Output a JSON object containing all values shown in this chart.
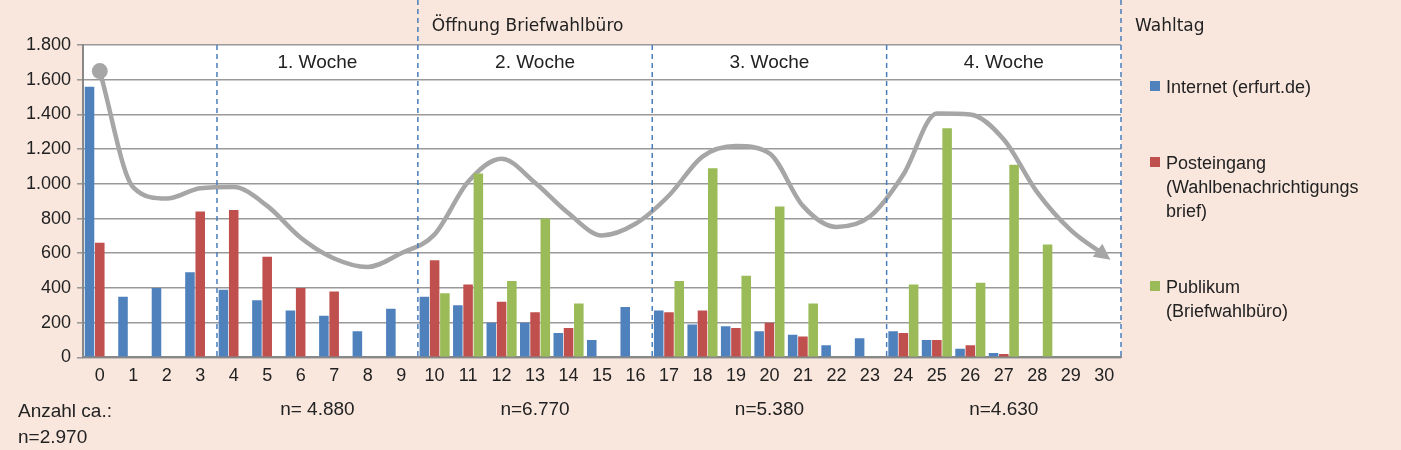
{
  "chart_data": {
    "type": "bar",
    "x": [
      0,
      1,
      2,
      3,
      4,
      5,
      6,
      7,
      8,
      9,
      10,
      11,
      12,
      13,
      14,
      15,
      16,
      17,
      18,
      19,
      20,
      21,
      22,
      23,
      24,
      25,
      26,
      27,
      28,
      29,
      30
    ],
    "xlim": [
      -0.5,
      30.5
    ],
    "xticks": [
      0,
      1,
      2,
      3,
      4,
      5,
      6,
      7,
      8,
      9,
      10,
      11,
      12,
      13,
      14,
      15,
      16,
      17,
      18,
      19,
      20,
      21,
      22,
      23,
      24,
      25,
      26,
      27,
      28,
      29,
      30
    ],
    "ylim": [
      0,
      1800
    ],
    "yticks": [
      0,
      {
        "value": 200,
        "label": "200"
      },
      {
        "value": 400,
        "label": "400"
      },
      {
        "value": 600,
        "label": "600"
      },
      {
        "value": 800,
        "label": "800"
      },
      {
        "value": 1000,
        "label": "1.000"
      },
      {
        "value": 1200,
        "label": "1.200"
      },
      {
        "value": 1400,
        "label": "1.400"
      },
      {
        "value": 1600,
        "label": "1.600"
      },
      {
        "value": 1800,
        "label": "1.800"
      }
    ],
    "grid": "y",
    "legend": "right",
    "series": [
      {
        "name": "Internet (erfurt.de)",
        "color": "#4f81bd",
        "values": [
          1560,
          350,
          400,
          490,
          390,
          330,
          270,
          240,
          150,
          280,
          350,
          300,
          200,
          200,
          140,
          100,
          290,
          270,
          190,
          180,
          150,
          130,
          70,
          110,
          150,
          100,
          50,
          25,
          null,
          null,
          null
        ]
      },
      {
        "name": "Posteingang (Wahlbenachrichtigungsbrief)",
        "color": "#c0504d",
        "values": [
          660,
          null,
          null,
          840,
          850,
          580,
          400,
          380,
          null,
          null,
          560,
          420,
          320,
          260,
          170,
          null,
          null,
          260,
          270,
          170,
          200,
          120,
          null,
          null,
          140,
          100,
          70,
          20,
          null,
          null,
          null
        ]
      },
      {
        "name": "Publikum (Briefwahlbüro)",
        "color": "#9bbb59",
        "values": [
          null,
          null,
          null,
          null,
          null,
          null,
          null,
          null,
          null,
          null,
          370,
          1060,
          440,
          800,
          310,
          null,
          null,
          440,
          1090,
          470,
          870,
          310,
          null,
          null,
          420,
          1320,
          430,
          1110,
          650,
          null,
          null
        ]
      },
      {
        "type": "line",
        "color": "#a6a6a6",
        "marker": "none",
        "values": [
          1650,
          980,
          915,
          975,
          982,
          873,
          690,
          570,
          521,
          600,
          709,
          1012,
          1145,
          1006,
          830,
          703,
          770,
          933,
          1157,
          1218,
          1176,
          873,
          752,
          812,
          1054,
          1406,
          1400,
          1255,
          951,
          733,
          590
        ]
      }
    ],
    "ref_lines": [
      {
        "axis": "x",
        "value": 3.5,
        "color": "#4a7ebb",
        "line_style": "dashed"
      },
      {
        "axis": "x",
        "value": 9.5,
        "label": "Öffnung Briefwahlbüro",
        "color": "#4a7ebb",
        "line_style": "dashed"
      },
      {
        "axis": "x",
        "value": 16.5,
        "color": "#4a7ebb",
        "line_style": "dashed"
      },
      {
        "axis": "x",
        "value": 23.5,
        "color": "#4a7ebb",
        "line_style": "dashed"
      },
      {
        "axis": "x",
        "value": 30.5,
        "label": "Wahltag",
        "color": "#4a7ebb",
        "line_style": "dashed"
      }
    ],
    "annotations": [
      "1. Woche",
      "2. Woche",
      "3. Woche",
      "4. Woche",
      "Anzahl ca.: n=2.970",
      "n= 4.880",
      "n=6.770",
      "n=5.380",
      "n=4.630"
    ]
  }
}
